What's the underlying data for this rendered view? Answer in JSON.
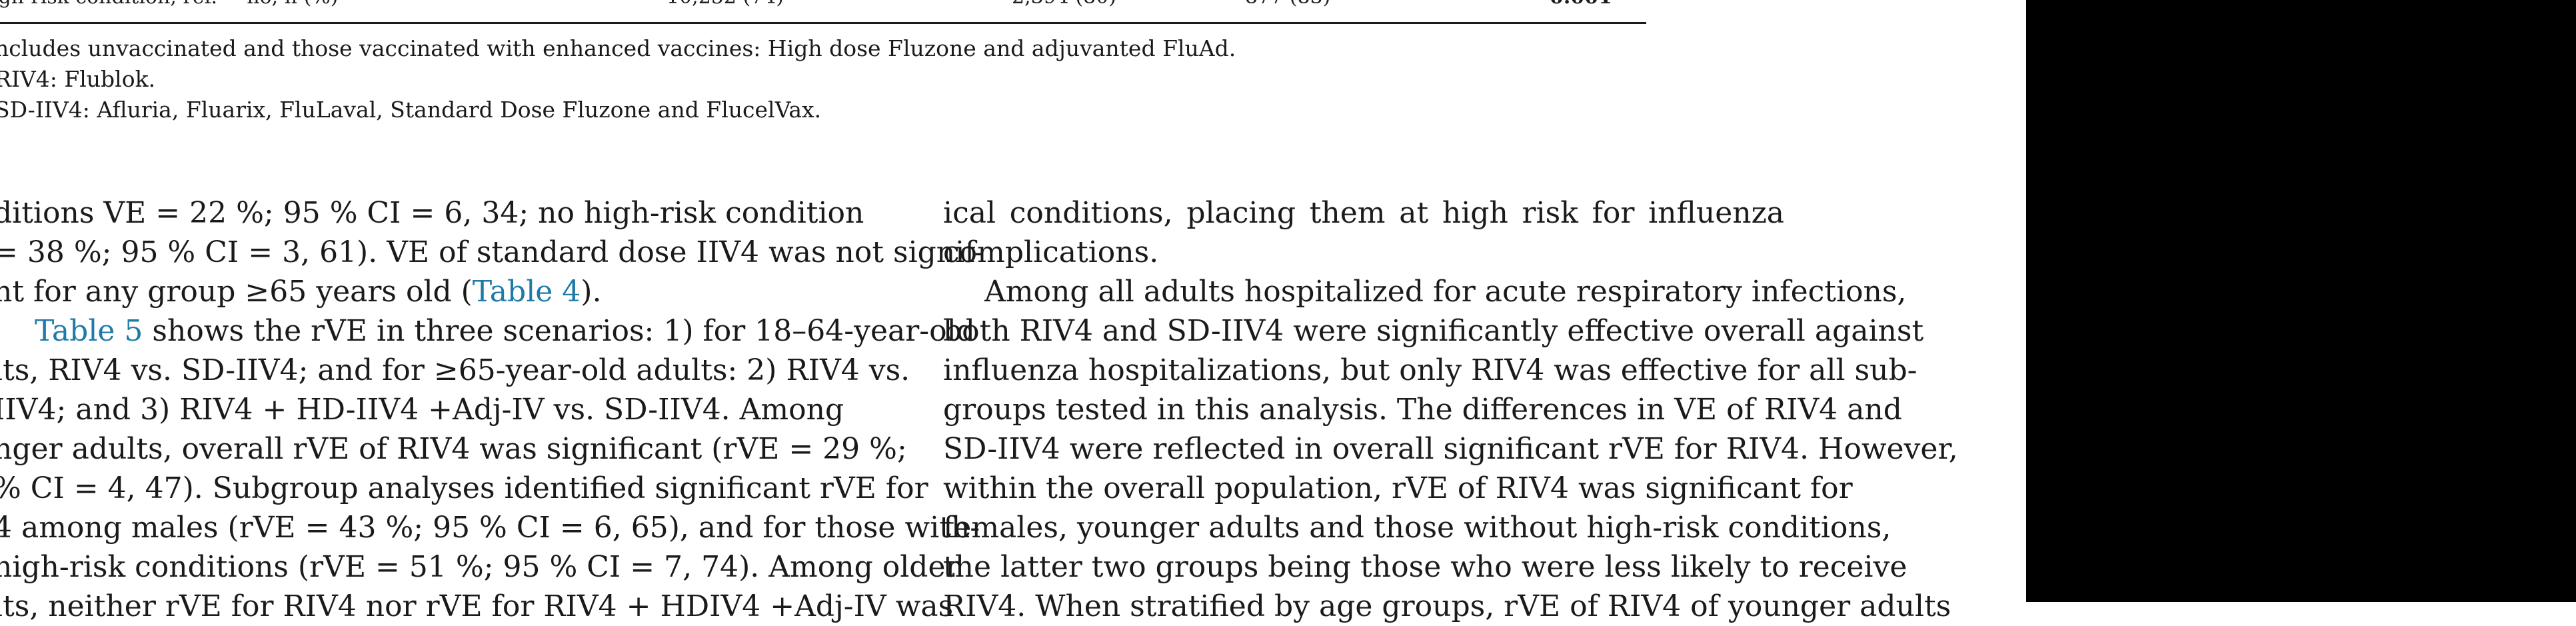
{
  "table_tail": {
    "cells": [
      "igh-risk condition, ref. = no, n (%)",
      "10,252 (74)",
      "2,394 (80)",
      "877 (83)",
      "0.001"
    ]
  },
  "footnotes": [
    "ncludes unvaccinated and those vaccinated with enhanced vaccines: High dose Fluzone and adjuvanted FluAd.",
    "RIV4: Flublok.",
    "SD-IIV4: Afluria, Fluarix, FluLaval, Standard Dose Fluzone and FlucelVax."
  ],
  "left_column": {
    "lines": [
      "ditions VE = 22 %; 95 % CI = 6, 34; no high-risk condition",
      "= 38 %; 95 % CI = 3, 61). VE of standard dose IIV4 was not signif-",
      "nt for any group ≥65 years old (",
      "Table 4",
      ").",
      "Table 5",
      " shows the rVE in three scenarios: 1) for 18–64-year-old",
      "lts, RIV4 vs. SD-IIV4; and for ≥65-year-old adults: 2) RIV4 vs.",
      "IIV4;  and  3)  RIV4  +  HD-IIV4  +Adj-IV  vs.  SD-IIV4.  Among",
      "nger adults, overall rVE of RIV4 was significant (rVE = 29 %;",
      "% CI = 4, 47). Subgroup analyses identified significant rVE for",
      "4 among males (rVE = 43 %; 95 % CI = 6, 65), and for those with-",
      "high-risk conditions (rVE = 51 %; 95 % CI = 7, 74). Among older",
      "lts, neither rVE for RIV4 nor rVE for RIV4 + HDIV4 +Adj-IV was"
    ]
  },
  "right_column": {
    "lines": [
      "ical   conditions,   placing   them   at   high   risk   for   influenza",
      "complications.",
      "Among all adults hospitalized for acute respiratory infections,",
      "both RIV4 and SD-IIV4 were significantly effective overall against",
      "influenza hospitalizations, but only RIV4 was effective for all sub-",
      "groups tested in this analysis. The differences in VE of RIV4 and",
      "SD-IIV4 were reflected in overall significant rVE for RIV4. However,",
      "within the overall population, rVE of RIV4 was significant for",
      "females, younger adults and those without high-risk conditions,",
      "the latter two groups being those who were less likely to receive",
      "RIV4. When stratified by age groups, rVE of RIV4 of younger adults"
    ]
  },
  "colors": {
    "link": "#1e7aa8",
    "text": "#1a1a1a",
    "right_panel": "#000000"
  }
}
